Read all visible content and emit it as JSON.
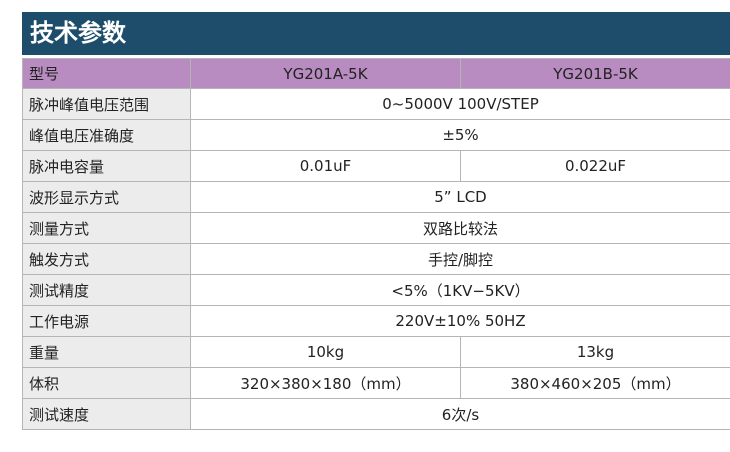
{
  "header": {
    "title": "技术参数"
  },
  "table": {
    "head": [
      "型号",
      "YG201A-5K",
      "YG201B-5K"
    ],
    "rows": [
      [
        "脉冲峰值电压范围",
        "0~5000V  100V/STEP"
      ],
      [
        "峰值电压准确度",
        "±5%"
      ],
      [
        "脉冲电容量",
        "0.01uF",
        "0.022uF"
      ],
      [
        "波形显示方式",
        "5” LCD"
      ],
      [
        "测量方式",
        "双路比较法"
      ],
      [
        "触发方式",
        "手控/脚控"
      ],
      [
        "测试精度",
        "<5%（1KV−5KV）"
      ],
      [
        "工作电源",
        "220V±10%  50HZ"
      ],
      [
        "重量",
        "10kg",
        "13kg"
      ],
      [
        "体积",
        "320×380×180（mm）",
        "380×460×205（mm）"
      ],
      [
        "测试速度",
        "6次/s"
      ]
    ]
  }
}
